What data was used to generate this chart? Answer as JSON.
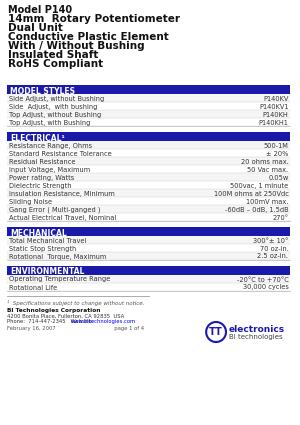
{
  "title_lines": [
    "Model P140",
    "14mm  Rotary Potentiometer",
    "Dual Unit",
    "Conductive Plastic Element",
    "With / Without Bushing",
    "Insulated Shaft",
    "RoHS Compliant"
  ],
  "section_bg": "#1a1aaa",
  "section_text_color": "#ffffff",
  "sections": [
    {
      "title": "MODEL STYLES",
      "rows": [
        [
          "Side Adjust, without Bushing",
          "P140KV"
        ],
        [
          "Side  Adjust,  with bushing",
          "P140KV1"
        ],
        [
          "Top Adjust, without Bushing",
          "P140KH"
        ],
        [
          "Top Adjust, with Bushing",
          "P140KH1"
        ]
      ]
    },
    {
      "title": "ELECTRICAL¹",
      "rows": [
        [
          "Resistance Range, Ohms",
          "500-1M"
        ],
        [
          "Standard Resistance Tolerance",
          "± 20%"
        ],
        [
          "Residual Resistance",
          "20 ohms max."
        ],
        [
          "Input Voltage, Maximum",
          "50 Vac max."
        ],
        [
          "Power rating, Watts",
          "0.05w"
        ],
        [
          "Dielectric Strength",
          "500vac, 1 minute"
        ],
        [
          "Insulation Resistance, Minimum",
          "100M ohms at 250Vdc"
        ],
        [
          "Sliding Noise",
          "100mV max."
        ],
        [
          "Gang Error ( Multi-ganged )",
          "-60dB – 0dB, 1.5dB"
        ],
        [
          "Actual Electrical Travel, Nominal",
          "270°"
        ]
      ]
    },
    {
      "title": "MECHANICAL",
      "rows": [
        [
          "Total Mechanical Travel",
          "300°± 10°"
        ],
        [
          "Static Stop Strength",
          "70 oz-in."
        ],
        [
          "Rotational  Torque, Maximum",
          "2.5 oz-in."
        ]
      ]
    },
    {
      "title": "ENVIRONMENTAL",
      "rows": [
        [
          "Operating Temperature Range",
          "-20°C to +70°C"
        ],
        [
          "Rotational Life",
          "30,000 cycles"
        ]
      ]
    }
  ],
  "footer_note": "¹  Specifications subject to change without notice.",
  "company_name": "BI Technologies Corporation",
  "company_address": "4200 Bonita Place, Fullerton, CA 92835  USA",
  "company_phone_prefix": "Phone:  714-447-2345   Website:  ",
  "company_phone_link": "www.bitechnologies.com",
  "date_page": "February 16, 2007                                    page 1 of 4",
  "bg_color": "#ffffff",
  "row_alt_color": "#f5f5f5",
  "separator_color": "#cccccc",
  "title_font_size": 7.5,
  "header_font_size": 5.5,
  "row_font_size": 4.8,
  "text_color": "#333333"
}
